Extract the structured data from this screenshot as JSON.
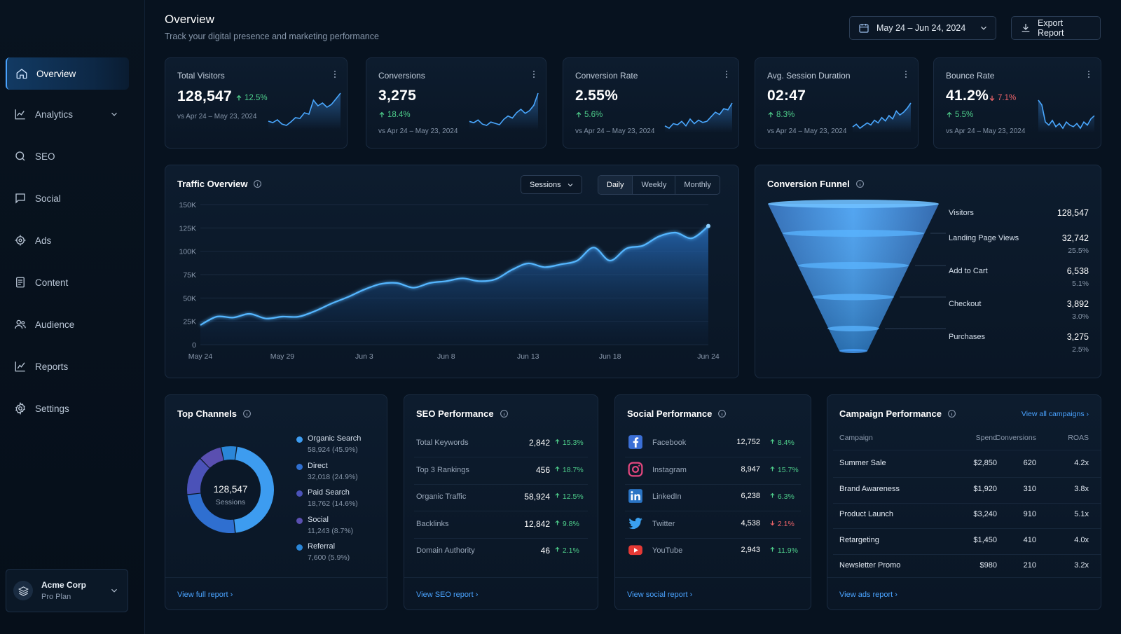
{
  "sidebar": {
    "items": [
      {
        "label": "Overview",
        "icon": "home-icon",
        "active": true
      },
      {
        "label": "Analytics",
        "icon": "chart-line-icon",
        "expandable": true
      },
      {
        "label": "SEO",
        "icon": "search-icon"
      },
      {
        "label": "Social",
        "icon": "chat-icon"
      },
      {
        "label": "Ads",
        "icon": "target-icon"
      },
      {
        "label": "Content",
        "icon": "document-icon"
      },
      {
        "label": "Audience",
        "icon": "users-icon"
      },
      {
        "label": "Reports",
        "icon": "report-chart-icon"
      },
      {
        "label": "Settings",
        "icon": "gear-icon"
      }
    ],
    "org": {
      "name": "Acme Corp",
      "plan": "Pro Plan"
    }
  },
  "header": {
    "title": "Overview",
    "subtitle": "Track your digital presence and marketing performance",
    "date_range": "May 24 – Jun 24, 2024",
    "export_label": "Export Report"
  },
  "colors": {
    "accent": "#4aa3ff",
    "up": "#4fd08c",
    "down": "#f0656a",
    "background": "#07121f"
  },
  "kpis": [
    {
      "title": "Total Visitors",
      "value": "128,547",
      "delta": "12.5%",
      "delta_dir": "up",
      "compare": "vs Apr 24 – May 23, 2024",
      "spark": [
        40,
        38,
        42,
        36,
        34,
        39,
        45,
        44,
        52,
        50,
        70,
        62,
        66,
        60,
        64,
        72,
        80
      ]
    },
    {
      "title": "Conversions",
      "value": "3,275",
      "delta": "18.4%",
      "delta_dir": "up",
      "compare": "vs Apr 24 – May 23, 2024",
      "spark": [
        42,
        40,
        44,
        38,
        36,
        41,
        39,
        37,
        45,
        50,
        47,
        55,
        60,
        54,
        58,
        66,
        84
      ]
    },
    {
      "title": "Conversion Rate",
      "value": "2.55%",
      "delta": "5.6%",
      "delta_dir": "up",
      "compare": "vs Apr 24 – May 23, 2024",
      "spark": [
        40,
        38,
        42,
        41,
        44,
        40,
        46,
        42,
        45,
        43,
        44,
        48,
        52,
        50,
        55,
        54,
        60
      ]
    },
    {
      "title": "Avg. Session Duration",
      "value": "02:47",
      "delta": "8.3%",
      "delta_dir": "up",
      "compare": "vs Apr 24 – May 23, 2024",
      "spark": [
        38,
        42,
        36,
        40,
        44,
        41,
        48,
        44,
        52,
        47,
        55,
        50,
        62,
        56,
        60,
        66,
        74
      ]
    },
    {
      "title": "Bounce Rate",
      "value": "41.2%",
      "delta": "7.1%",
      "delta_dir": "down",
      "delta2": "5.5%",
      "delta2_dir": "up",
      "compare": "vs Apr 24 – May 23, 2024",
      "spark": [
        78,
        72,
        50,
        46,
        52,
        44,
        48,
        42,
        50,
        46,
        44,
        48,
        42,
        50,
        46,
        54,
        58
      ]
    }
  ],
  "traffic": {
    "title": "Traffic Overview",
    "metric_select": "Sessions",
    "periods": [
      "Daily",
      "Weekly",
      "Monthly"
    ],
    "selected_period": "Daily"
  },
  "chart_data": {
    "type": "area",
    "title": "Traffic Overview",
    "x": [
      "May 24",
      "May 25",
      "May 26",
      "May 27",
      "May 28",
      "May 29",
      "May 30",
      "May 31",
      "Jun 1",
      "Jun 2",
      "Jun 3",
      "Jun 4",
      "Jun 5",
      "Jun 6",
      "Jun 7",
      "Jun 8",
      "Jun 9",
      "Jun 10",
      "Jun 11",
      "Jun 12",
      "Jun 13",
      "Jun 14",
      "Jun 15",
      "Jun 16",
      "Jun 17",
      "Jun 18",
      "Jun 19",
      "Jun 20",
      "Jun 21",
      "Jun 22",
      "Jun 23",
      "Jun 24"
    ],
    "series": [
      {
        "values": [
          21000,
          30000,
          29000,
          33000,
          28000,
          30000,
          30000,
          36000,
          44000,
          51000,
          59000,
          65000,
          66000,
          61000,
          66000,
          68000,
          71000,
          68000,
          70000,
          80000,
          87000,
          83000,
          86000,
          90000,
          104000,
          90000,
          103000,
          106000,
          116000,
          120000,
          114000,
          127000
        ]
      }
    ],
    "x_ticks": [
      "May 24",
      "May 29",
      "Jun 3",
      "Jun 8",
      "Jun 13",
      "Jun 18",
      "Jun 24"
    ],
    "y_ticks": [
      "0",
      "25K",
      "50K",
      "75K",
      "100K",
      "125K",
      "150K"
    ],
    "ylim": [
      0,
      150000
    ],
    "grid": true
  },
  "funnel": {
    "title": "Conversion Funnel",
    "stages": [
      {
        "name": "Visitors",
        "value": "128,547",
        "pct": ""
      },
      {
        "name": "Landing Page Views",
        "value": "32,742",
        "pct": "25.5%"
      },
      {
        "name": "Add to Cart",
        "value": "6,538",
        "pct": "5.1%"
      },
      {
        "name": "Checkout",
        "value": "3,892",
        "pct": "3.0%"
      },
      {
        "name": "Purchases",
        "value": "3,275",
        "pct": "2.5%"
      }
    ]
  },
  "channels": {
    "title": "Top Channels",
    "total": "128,547",
    "total_label": "Sessions",
    "items": [
      {
        "name": "Organic Search",
        "detail": "58,924 (45.9%)",
        "share": 45.9,
        "color": "#3d9cf0"
      },
      {
        "name": "Direct",
        "detail": "32,018 (24.9%)",
        "share": 24.9,
        "color": "#2f6fd0"
      },
      {
        "name": "Paid Search",
        "detail": "18,762 (14.6%)",
        "share": 14.6,
        "color": "#4b52b8"
      },
      {
        "name": "Social",
        "detail": "11,243 (8.7%)",
        "share": 8.7,
        "color": "#5a4fb0"
      },
      {
        "name": "Referral",
        "detail": "7,600 (5.9%)",
        "share": 5.9,
        "color": "#2a86d8"
      }
    ],
    "footer": "View full report"
  },
  "seo": {
    "title": "SEO Performance",
    "rows": [
      {
        "label": "Total Keywords",
        "value": "2,842",
        "delta": "15.3%",
        "dir": "up"
      },
      {
        "label": "Top 3 Rankings",
        "value": "456",
        "delta": "18.7%",
        "dir": "up"
      },
      {
        "label": "Organic Traffic",
        "value": "58,924",
        "delta": "12.5%",
        "dir": "up"
      },
      {
        "label": "Backlinks",
        "value": "12,842",
        "delta": "9.8%",
        "dir": "up"
      },
      {
        "label": "Domain Authority",
        "value": "46",
        "delta": "2.1%",
        "dir": "up"
      }
    ],
    "footer": "View SEO report"
  },
  "social": {
    "title": "Social Performance",
    "rows": [
      {
        "label": "Facebook",
        "icon": "facebook-icon",
        "value": "12,752",
        "delta": "8.4%",
        "dir": "up"
      },
      {
        "label": "Instagram",
        "icon": "instagram-icon",
        "value": "8,947",
        "delta": "15.7%",
        "dir": "up"
      },
      {
        "label": "LinkedIn",
        "icon": "linkedin-icon",
        "value": "6,238",
        "delta": "6.3%",
        "dir": "up"
      },
      {
        "label": "Twitter",
        "icon": "twitter-icon",
        "value": "4,538",
        "delta": "2.1%",
        "dir": "down"
      },
      {
        "label": "YouTube",
        "icon": "youtube-icon",
        "value": "2,943",
        "delta": "11.9%",
        "dir": "up"
      }
    ],
    "footer": "View social report"
  },
  "campaigns": {
    "title": "Campaign Performance",
    "view_all": "View all campaigns",
    "columns": [
      "Campaign",
      "Spend",
      "Conversions",
      "ROAS"
    ],
    "rows": [
      [
        "Summer Sale",
        "$2,850",
        "620",
        "4.2x"
      ],
      [
        "Brand Awareness",
        "$1,920",
        "310",
        "3.8x"
      ],
      [
        "Product Launch",
        "$3,240",
        "910",
        "5.1x"
      ],
      [
        "Retargeting",
        "$1,450",
        "410",
        "4.0x"
      ],
      [
        "Newsletter Promo",
        "$980",
        "210",
        "3.2x"
      ]
    ],
    "footer": "View ads report"
  }
}
